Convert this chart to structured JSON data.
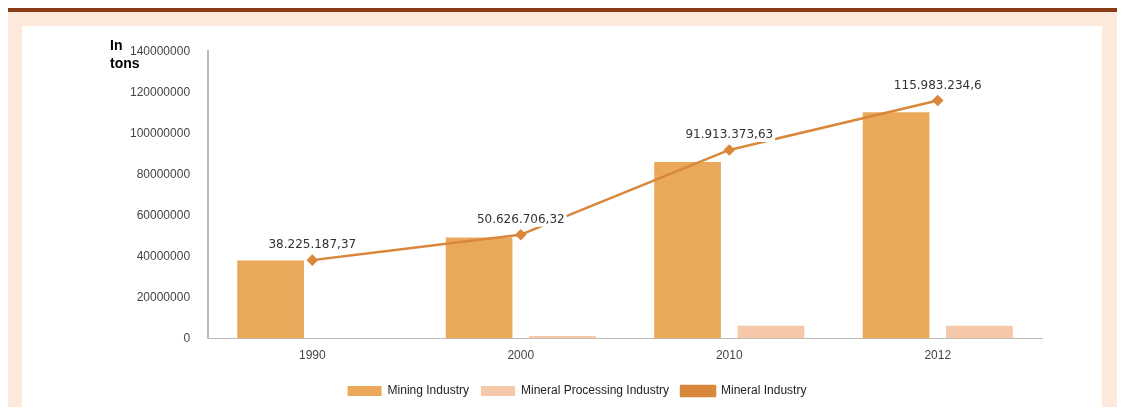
{
  "chart_data": {
    "type": "bar",
    "ylabel": "In tons",
    "categories": [
      "1990",
      "2000",
      "2010",
      "2012"
    ],
    "series": [
      {
        "name": "Mining Industry",
        "color": "#e9a85a",
        "values": [
          38000000,
          49300000,
          86000000,
          110300000
        ]
      },
      {
        "name": "Mineral Processing Industry",
        "color": "#f4c8a8",
        "values": [
          null,
          1300000,
          6300000,
          6300000
        ]
      },
      {
        "name": "Mineral Industry",
        "type": "line",
        "color": "#d9873a",
        "marker": "diamond",
        "values": [
          38225187.37,
          50626706.32,
          91913373.63,
          115983234.6
        ],
        "value_labels": [
          "38.225.187,37",
          "50.626.706,32",
          "91.913.373,63",
          "115.983.234,6"
        ]
      }
    ],
    "ylim": [
      0,
      140000000
    ],
    "yticks": [
      0,
      20000000,
      40000000,
      60000000,
      80000000,
      100000000,
      120000000,
      140000000
    ],
    "grid": false,
    "legend": "bottom"
  }
}
